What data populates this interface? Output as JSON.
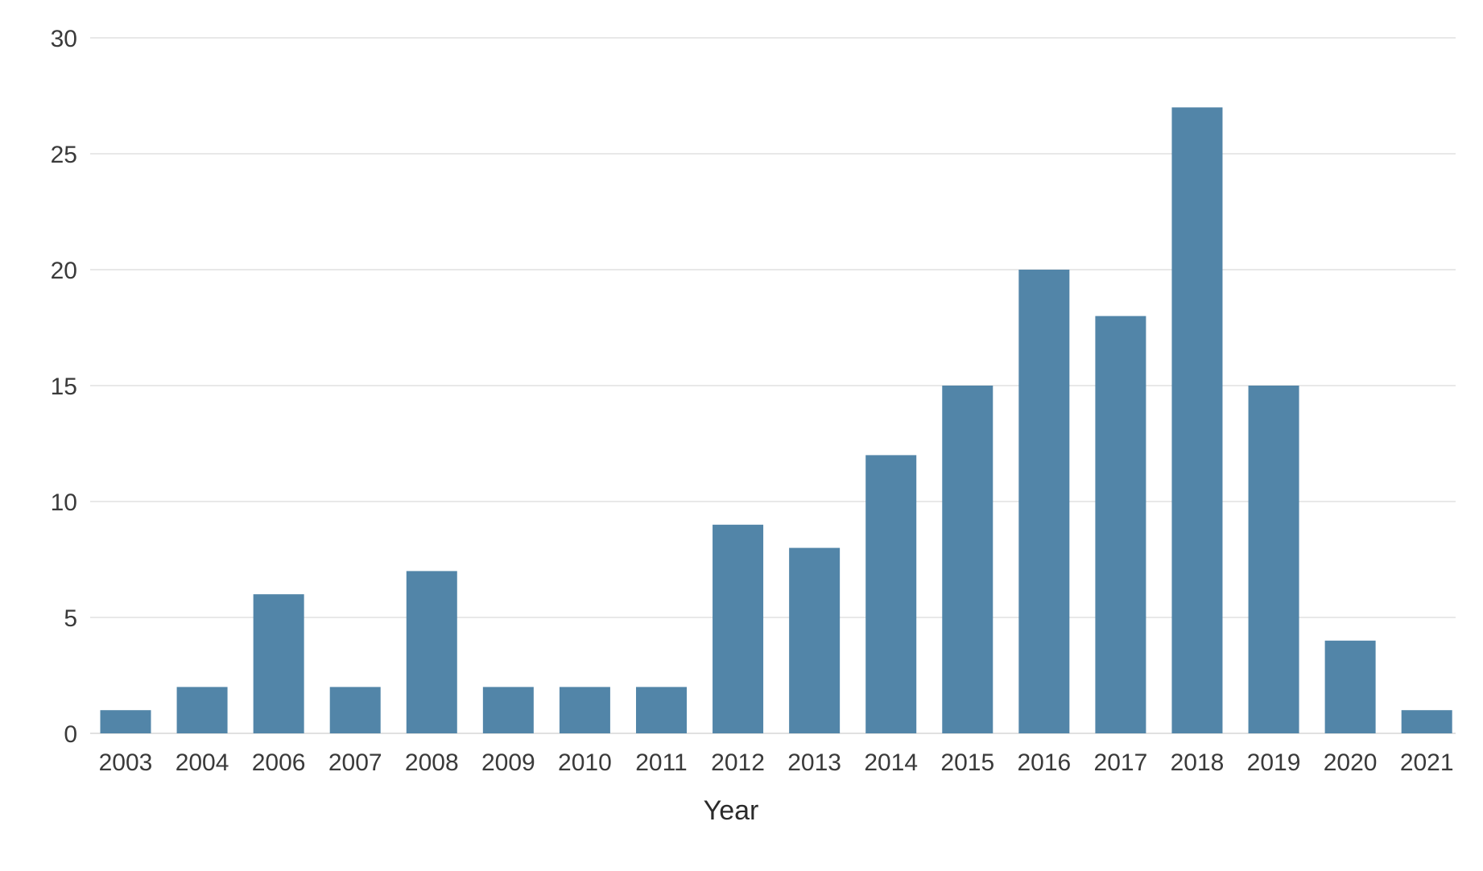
{
  "chart_data": {
    "type": "bar",
    "title": "",
    "xlabel": "Year",
    "ylabel": "",
    "categories": [
      "2003",
      "2004",
      "2006",
      "2007",
      "2008",
      "2009",
      "2010",
      "2011",
      "2012",
      "2013",
      "2014",
      "2015",
      "2016",
      "2017",
      "2018",
      "2019",
      "2020",
      "2021"
    ],
    "values": [
      1,
      2,
      6,
      2,
      7,
      2,
      2,
      2,
      9,
      8,
      12,
      15,
      20,
      18,
      27,
      15,
      4,
      1
    ],
    "ylim": [
      0,
      30
    ],
    "yticks": [
      "0",
      "5",
      "10",
      "15",
      "20",
      "25",
      "30"
    ],
    "grid": true,
    "legend": "none",
    "colors": {
      "bar": "#5285a8",
      "grid": "#d9d9d9",
      "text": "#3a3a3a"
    }
  }
}
